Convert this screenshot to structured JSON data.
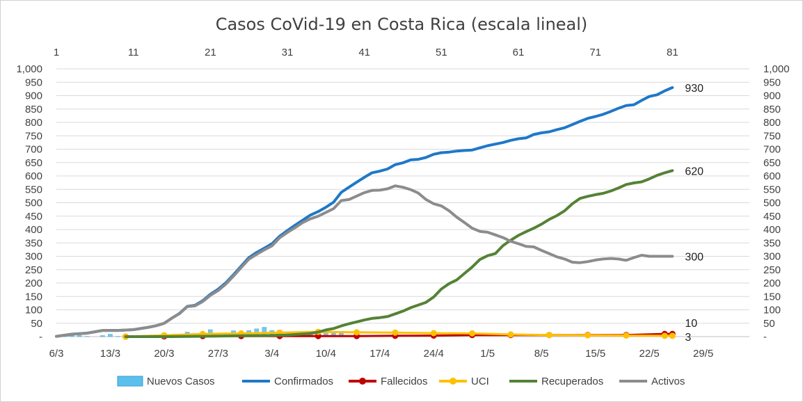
{
  "chart_data": {
    "type": "line",
    "title": "Casos CoVid-19 en Costa Rica (escala lineal)",
    "top_axis": {
      "range": [
        1,
        91
      ],
      "ticks": [
        "1",
        "11",
        "21",
        "31",
        "41",
        "51",
        "61",
        "71",
        "81"
      ]
    },
    "bottom_axis": {
      "ticks": [
        "6/3",
        "13/3",
        "20/3",
        "27/3",
        "3/4",
        "10/4",
        "17/4",
        "24/4",
        "1/5",
        "8/5",
        "15/5",
        "22/5",
        "29/5"
      ]
    },
    "y_axis": {
      "range": [
        0,
        1000
      ],
      "ticks": [
        "-",
        "50",
        "100",
        "150",
        "200",
        "250",
        "300",
        "350",
        "400",
        "450",
        "500",
        "550",
        "600",
        "650",
        "700",
        "750",
        "800",
        "850",
        "900",
        "950",
        "1,000"
      ]
    },
    "series": [
      {
        "name": "Nuevos Casos",
        "type": "bar",
        "color": "#5bc0eb",
        "x": [
          2,
          3,
          4,
          5,
          6,
          7,
          8,
          9,
          10,
          11,
          12,
          13,
          14,
          15,
          16,
          17,
          18,
          19,
          20,
          21,
          22,
          23,
          24,
          25,
          26,
          27,
          28,
          29,
          30,
          31,
          32,
          33,
          34,
          35,
          36,
          37,
          38
        ],
        "values": [
          1,
          4,
          4,
          1,
          0,
          4,
          9,
          1,
          0,
          4,
          3,
          5,
          3,
          4,
          4,
          5,
          17,
          4,
          0,
          26,
          4,
          13,
          22,
          19,
          23,
          29,
          35,
          23,
          24,
          16,
          17,
          17,
          14,
          11,
          19,
          13,
          12
        ]
      },
      {
        "name": "Confirmados",
        "type": "line",
        "color": "#1f78c8",
        "x": [
          1,
          3,
          5,
          7,
          9,
          11,
          13,
          14,
          15,
          16,
          17,
          18,
          19,
          20,
          21,
          22,
          23,
          24,
          25,
          26,
          27,
          28,
          29,
          30,
          31,
          32,
          33,
          34,
          35,
          36,
          37,
          38,
          39,
          40,
          41,
          42,
          43,
          44,
          45,
          46,
          47,
          48,
          49,
          50,
          51,
          52,
          53,
          54,
          55,
          56,
          57,
          58,
          59,
          60,
          61,
          62,
          63,
          64,
          65,
          66,
          67,
          68,
          69,
          70,
          71,
          72,
          73,
          74,
          75,
          76,
          77,
          78,
          79,
          80,
          81
        ],
        "values": [
          1,
          9,
          13,
          23,
          23,
          26,
          35,
          41,
          50,
          69,
          87,
          113,
          117,
          134,
          158,
          177,
          201,
          231,
          263,
          295,
          314,
          330,
          347,
          375,
          396,
          416,
          435,
          454,
          467,
          483,
          502,
          539,
          558,
          577,
          595,
          612,
          618,
          626,
          642,
          649,
          660,
          662,
          669,
          681,
          687,
          689,
          693,
          695,
          697,
          705,
          713,
          719,
          725,
          733,
          739,
          742,
          755,
          761,
          765,
          773,
          780,
          792,
          804,
          815,
          822,
          830,
          841,
          853,
          863,
          866,
          882,
          897,
          903,
          918,
          930
        ],
        "end_label": "930"
      },
      {
        "name": "Fallecidos",
        "type": "line",
        "color": "#c00000",
        "x": [
          10,
          15,
          20,
          25,
          30,
          35,
          40,
          45,
          50,
          55,
          60,
          65,
          70,
          75,
          80,
          81
        ],
        "values": [
          0,
          1,
          2,
          2,
          2,
          2,
          2,
          3,
          4,
          6,
          6,
          6,
          6,
          6,
          10,
          10
        ],
        "end_label": "10"
      },
      {
        "name": "UCI",
        "type": "line",
        "color": "#ffc000",
        "x": [
          10,
          15,
          20,
          25,
          30,
          35,
          40,
          45,
          50,
          55,
          60,
          65,
          70,
          75,
          80,
          81
        ],
        "values": [
          0,
          5,
          10,
          12,
          15,
          18,
          16,
          15,
          13,
          12,
          8,
          6,
          5,
          4,
          3,
          3
        ],
        "end_label": "3"
      },
      {
        "name": "Recuperados",
        "type": "line",
        "color": "#548235",
        "x": [
          10,
          13,
          16,
          19,
          22,
          25,
          28,
          31,
          34,
          35,
          36,
          37,
          38,
          39,
          40,
          41,
          42,
          43,
          44,
          45,
          46,
          47,
          48,
          49,
          50,
          51,
          52,
          53,
          54,
          55,
          56,
          57,
          58,
          59,
          60,
          61,
          62,
          63,
          64,
          65,
          66,
          67,
          68,
          69,
          70,
          71,
          72,
          73,
          74,
          75,
          76,
          77,
          78,
          79,
          80,
          81
        ],
        "values": [
          0,
          0,
          0,
          1,
          2,
          3,
          4,
          6,
          12,
          17,
          25,
          30,
          40,
          48,
          55,
          62,
          68,
          71,
          75,
          85,
          95,
          108,
          118,
          128,
          148,
          178,
          198,
          212,
          236,
          260,
          288,
          302,
          310,
          340,
          360,
          378,
          392,
          405,
          420,
          438,
          452,
          470,
          496,
          516,
          524,
          530,
          535,
          544,
          555,
          568,
          574,
          578,
          589,
          602,
          612,
          620
        ],
        "end_label": "620"
      },
      {
        "name": "Activos",
        "type": "line",
        "color": "#8c8c8c",
        "x": [
          1,
          3,
          5,
          7,
          9,
          11,
          13,
          14,
          15,
          16,
          17,
          18,
          19,
          20,
          21,
          22,
          23,
          24,
          25,
          26,
          27,
          28,
          29,
          30,
          31,
          32,
          33,
          34,
          35,
          36,
          37,
          38,
          39,
          40,
          41,
          42,
          43,
          44,
          45,
          46,
          47,
          48,
          49,
          50,
          51,
          52,
          53,
          54,
          55,
          56,
          57,
          58,
          59,
          60,
          61,
          62,
          63,
          64,
          65,
          66,
          67,
          68,
          69,
          70,
          71,
          72,
          73,
          74,
          75,
          76,
          77,
          78,
          79,
          80,
          81
        ],
        "values": [
          1,
          9,
          13,
          23,
          23,
          26,
          35,
          41,
          50,
          69,
          86,
          112,
          115,
          131,
          154,
          172,
          196,
          226,
          258,
          289,
          307,
          324,
          339,
          369,
          389,
          407,
          426,
          440,
          450,
          464,
          478,
          508,
          512,
          525,
          538,
          546,
          547,
          552,
          563,
          558,
          549,
          536,
          512,
          496,
          488,
          470,
          446,
          426,
          405,
          393,
          390,
          380,
          370,
          356,
          347,
          337,
          335,
          322,
          310,
          298,
          290,
          278,
          276,
          280,
          286,
          290,
          292,
          290,
          285,
          295,
          304,
          300,
          300,
          300,
          300
        ],
        "end_label": "300"
      }
    ],
    "legend": [
      "Nuevos Casos",
      "Confirmados",
      "Fallecidos",
      "UCI",
      "Recuperados",
      "Activos"
    ],
    "legend_position": "bottom"
  }
}
